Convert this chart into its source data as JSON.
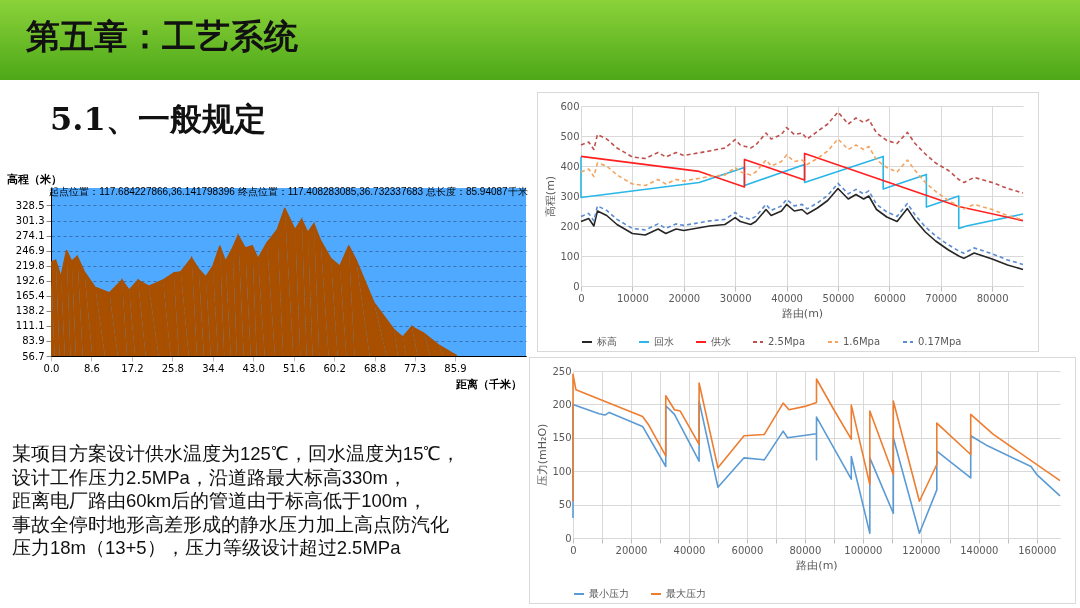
{
  "chart_data": [
    {
      "type": "other",
      "title": "第五章：工艺系统",
      "subtitle": "5.1、一般规定",
      "annotations": [
        "某项目方案设计供水温度为125℃，回水温度为15℃，",
        "设计工作压力2.5MPa，沿道路最大标高330m，",
        "距离电厂路由60km后的管道由于标高低于100m，",
        "事故全停时地形高差形成的静水压力加上高点防汽化",
        "压力18m（13+5），压力等级设计超过2.5MPa"
      ]
    },
    {
      "type": "area",
      "title": "起点位置：117.684227866,36.141798396 终点位置：117.408283085,36.732337683 总长度：85.94087千米",
      "xlabel": "距离（千米）",
      "ylabel": "高程（米）",
      "color": "#a84f00",
      "x": [
        0,
        1.0,
        2.1,
        3.3,
        4.4,
        5.6,
        7.1,
        9.4,
        12.4,
        15.1,
        16.6,
        18.5,
        20.8,
        23.8,
        26.1,
        27.6,
        29.9,
        31.4,
        32.9,
        34.4,
        35.9,
        37.1,
        38.6,
        39.8,
        41.3,
        42.8,
        44.0,
        45.9,
        48.1,
        49.7,
        51.9,
        53.3,
        54.6,
        55.9,
        57.3,
        59.5,
        61.4,
        63.3,
        64.9,
        68.7,
        72.9,
        74.8,
        76.7,
        79.3,
        82.4,
        86.2
      ],
      "values": [
        226,
        230,
        200,
        248,
        228,
        237,
        209,
        181,
        171,
        194,
        176,
        194,
        183,
        194,
        207,
        209,
        234,
        214,
        200,
        219,
        256,
        228,
        252,
        275,
        252,
        256,
        233,
        261,
        285,
        324,
        285,
        304,
        280,
        296,
        266,
        233,
        219,
        256,
        230,
        153,
        105,
        91,
        110,
        98,
        77,
        58
      ],
      "xlim": [
        0,
        101
      ],
      "ylim": [
        56.7,
        360
      ],
      "xticks": [
        {
          "value": 0,
          "label": "0.0"
        },
        8.6,
        17.2,
        25.8,
        34.4,
        {
          "value": 43,
          "label": "43.0"
        },
        51.6,
        60.2,
        68.8,
        77.3,
        85.9
      ],
      "yticks": [
        56.7,
        83.9,
        111.1,
        138.2,
        165.4,
        192.6,
        219.8,
        246.9,
        274.1,
        301.3,
        328.5
      ],
      "grid": "y",
      "legend": false
    },
    {
      "type": "line",
      "xlabel": "路由(m)",
      "ylabel": "高程(m)",
      "xlim": [
        0,
        86000
      ],
      "ylim": [
        0,
        600
      ],
      "xticks": [
        0,
        10000,
        20000,
        30000,
        40000,
        50000,
        60000,
        70000,
        80000
      ],
      "yticks": [
        0,
        100,
        200,
        300,
        400,
        500,
        600
      ],
      "grid": true,
      "legend": "bottom",
      "x": [
        0,
        1500,
        2500,
        3200,
        5000,
        7000,
        10000,
        12500,
        15000,
        16500,
        18500,
        20000,
        25000,
        28000,
        30000,
        31000,
        33000,
        34000,
        36000,
        37000,
        39000,
        40000,
        41500,
        43000,
        44000,
        46000,
        48000,
        50000,
        52000,
        53500,
        55000,
        56000,
        57500,
        59500,
        61500,
        63500,
        65000,
        67000,
        69000,
        71500,
        73500,
        74500,
        76500,
        80000,
        83000,
        86000
      ],
      "series": [
        {
          "name": "标高",
          "color": "#262626",
          "values": [
            215,
            225,
            200,
            250,
            235,
            205,
            175,
            170,
            190,
            175,
            190,
            185,
            200,
            205,
            228,
            215,
            205,
            215,
            255,
            235,
            250,
            272,
            250,
            255,
            240,
            260,
            285,
            325,
            290,
            305,
            290,
            300,
            255,
            230,
            215,
            258,
            220,
            180,
            150,
            120,
            100,
            92,
            110,
            90,
            70,
            55
          ]
        },
        {
          "name": "回水",
          "color": "#29b6e8",
          "x": [
            0,
            0,
            23000,
            31800,
            31800,
            43500,
            43500,
            58800,
            58800,
            67200,
            67200,
            73500,
            73500,
            75000,
            86000
          ],
          "values": [
            430,
            295,
            345,
            395,
            335,
            405,
            345,
            432,
            323,
            372,
            263,
            300,
            192,
            200,
            240
          ]
        },
        {
          "name": "供水",
          "color": "#ff2020",
          "x": [
            0,
            23000,
            31800,
            31800,
            43500,
            43500,
            73500,
            86000
          ],
          "values": [
            432,
            382,
            330,
            422,
            353,
            442,
            265,
            218
          ]
        },
        {
          "name": "2.5Mpa",
          "color": "#c0504d",
          "line_style": "dashed",
          "values": [
            470,
            480,
            455,
            505,
            490,
            460,
            430,
            425,
            445,
            430,
            445,
            435,
            450,
            460,
            488,
            470,
            460,
            470,
            510,
            490,
            505,
            528,
            505,
            510,
            490,
            515,
            540,
            580,
            540,
            560,
            545,
            555,
            510,
            485,
            475,
            512,
            475,
            440,
            410,
            385,
            355,
            345,
            362,
            345,
            325,
            310
          ]
        },
        {
          "name": "1.6Mpa",
          "color": "#f4a460",
          "line_style": "dashed",
          "values": [
            380,
            390,
            365,
            410,
            400,
            370,
            340,
            335,
            355,
            340,
            355,
            350,
            365,
            370,
            395,
            380,
            370,
            380,
            420,
            400,
            415,
            437,
            415,
            420,
            405,
            425,
            450,
            490,
            455,
            470,
            455,
            465,
            420,
            395,
            380,
            420,
            385,
            345,
            315,
            285,
            265,
            257,
            272,
            255,
            235,
            220
          ]
        },
        {
          "name": "0.17Mpa",
          "color": "#5b8bd0",
          "line_style": "dashed",
          "values": [
            232,
            242,
            217,
            267,
            252,
            222,
            192,
            187,
            207,
            192,
            207,
            202,
            217,
            222,
            245,
            232,
            222,
            232,
            272,
            252,
            267,
            289,
            267,
            272,
            257,
            277,
            302,
            342,
            307,
            322,
            307,
            317,
            272,
            247,
            232,
            275,
            237,
            197,
            167,
            137,
            117,
            109,
            127,
            107,
            87,
            72
          ]
        }
      ]
    },
    {
      "type": "line",
      "xlabel": "路由(m)",
      "ylabel": "压力(mH₂O)",
      "xlim": [
        0,
        168000
      ],
      "ylim": [
        0,
        250
      ],
      "xticks": [
        0,
        {
          "value": 10000,
          "label": null
        },
        20000,
        {
          "value": 30000,
          "label": null
        },
        40000,
        {
          "value": 50000,
          "label": null
        },
        60000,
        {
          "value": 70000,
          "label": null
        },
        80000,
        {
          "value": 90000,
          "label": null
        },
        100000,
        {
          "value": 110000,
          "label": null
        },
        120000,
        {
          "value": 130000,
          "label": null
        },
        140000,
        {
          "value": 150000,
          "label": null
        },
        160000
      ],
      "yticks": [
        0,
        50,
        100,
        150,
        200,
        250
      ],
      "grid": true,
      "legend": "bottom",
      "series": [
        {
          "name": "最小压力",
          "color": "#5b9bd5",
          "x": [
            0,
            0,
            9000,
            11000,
            12500,
            24000,
            32000,
            32000,
            35000,
            43500,
            43500,
            50000,
            59000,
            66000,
            72500,
            74000,
            84000,
            84000,
            84000,
            96000,
            96000,
            102400,
            102400,
            110500,
            110500,
            119500,
            125500,
            125500,
            137200,
            137200,
            143000,
            158000,
            160000,
            168000
          ],
          "values": [
            30,
            200,
            186,
            184,
            188,
            167,
            107,
            198,
            185,
            115,
            205,
            76,
            120,
            117,
            160,
            150,
            156,
            117,
            181,
            88,
            122,
            7,
            120,
            37,
            150,
            7,
            72,
            130,
            90,
            153,
            138,
            107,
            95,
            63
          ]
        },
        {
          "name": "最大压力",
          "color": "#ed7d31",
          "x": [
            0,
            0,
            1000,
            24000,
            26000,
            32000,
            32000,
            35000,
            37000,
            43500,
            43500,
            50000,
            59000,
            66000,
            72500,
            74500,
            80000,
            84000,
            84000,
            90000,
            96000,
            96000,
            102400,
            102400,
            110500,
            110500,
            119500,
            125500,
            125500,
            137200,
            137200,
            145000,
            168000
          ],
          "values": [
            55,
            245,
            222,
            182,
            170,
            123,
            213,
            192,
            190,
            140,
            232,
            105,
            153,
            155,
            202,
            192,
            197,
            203,
            238,
            192,
            148,
            199,
            80,
            190,
            95,
            205,
            55,
            110,
            172,
            125,
            185,
            155,
            86
          ]
        }
      ]
    }
  ]
}
